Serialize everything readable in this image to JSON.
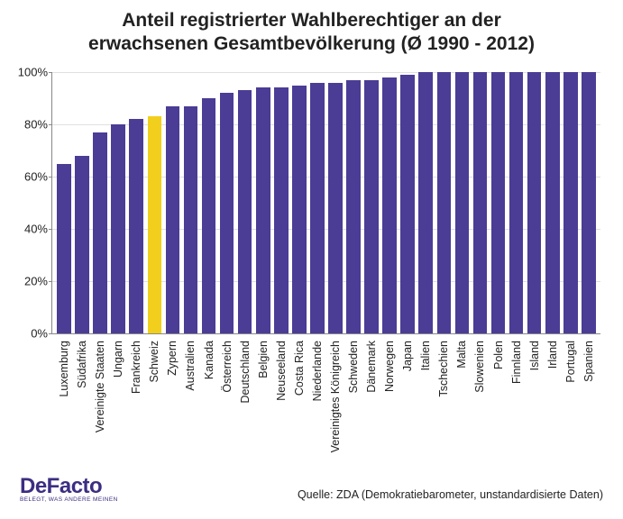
{
  "chart": {
    "type": "bar",
    "title_line1": "Anteil registrierter Wahlberechtiger an der",
    "title_line2": "erwachsenen Gesamtbevölkerung (Ø 1990 - 2012)",
    "title_fontsize": 21,
    "title_color": "#222222",
    "bar_color_default": "#4b3c95",
    "bar_color_highlight": "#f2cf1d",
    "highlight_category": "Schweiz",
    "background_color": "#ffffff",
    "grid_color": "#e0e0e0",
    "axis_color": "#888888",
    "ylim": [
      0,
      100
    ],
    "ytick_step": 20,
    "y_ticks": [
      {
        "v": 0,
        "label": "0%"
      },
      {
        "v": 20,
        "label": "20%"
      },
      {
        "v": 40,
        "label": "40%"
      },
      {
        "v": 60,
        "label": "60%"
      },
      {
        "v": 80,
        "label": "80%"
      },
      {
        "v": 100,
        "label": "100%"
      }
    ],
    "y_label_fontsize": 13,
    "x_label_fontsize": 12.5,
    "x_label_rotation": -90,
    "bar_width_ratio": 0.78,
    "data": [
      {
        "category": "Luxemburg",
        "value": 65
      },
      {
        "category": "Südafrika",
        "value": 68
      },
      {
        "category": "Vereinigte Staaten",
        "value": 77
      },
      {
        "category": "Ungarn",
        "value": 80
      },
      {
        "category": "Frankreich",
        "value": 82
      },
      {
        "category": "Schweiz",
        "value": 83
      },
      {
        "category": "Zypern",
        "value": 87
      },
      {
        "category": "Australien",
        "value": 87
      },
      {
        "category": "Kanada",
        "value": 90
      },
      {
        "category": "Österreich",
        "value": 92
      },
      {
        "category": "Deutschland",
        "value": 93
      },
      {
        "category": "Belgien",
        "value": 94
      },
      {
        "category": "Neuseeland",
        "value": 94
      },
      {
        "category": "Costa Rica",
        "value": 95
      },
      {
        "category": "Niederlande",
        "value": 96
      },
      {
        "category": "Vereinigtes Königreich",
        "value": 96
      },
      {
        "category": "Schweden",
        "value": 97
      },
      {
        "category": "Dänemark",
        "value": 97
      },
      {
        "category": "Norwegen",
        "value": 98
      },
      {
        "category": "Japan",
        "value": 99
      },
      {
        "category": "Italien",
        "value": 100
      },
      {
        "category": "Tschechien",
        "value": 100
      },
      {
        "category": "Malta",
        "value": 100
      },
      {
        "category": "Slowenien",
        "value": 100
      },
      {
        "category": "Polen",
        "value": 100
      },
      {
        "category": "Finnland",
        "value": 100
      },
      {
        "category": "Island",
        "value": 100
      },
      {
        "category": "Irland",
        "value": 100
      },
      {
        "category": "Portugal",
        "value": 100
      },
      {
        "category": "Spanien",
        "value": 100
      }
    ]
  },
  "footer": {
    "logo_main": "DeFacto",
    "logo_sub": "BELEGT, WAS ANDERE MEINEN",
    "logo_color": "#3b2e82",
    "logo_fontsize": 24,
    "source": "Quelle: ZDA (Demokratiebarometer, unstandardisierte Daten)",
    "source_fontsize": 12.5
  }
}
